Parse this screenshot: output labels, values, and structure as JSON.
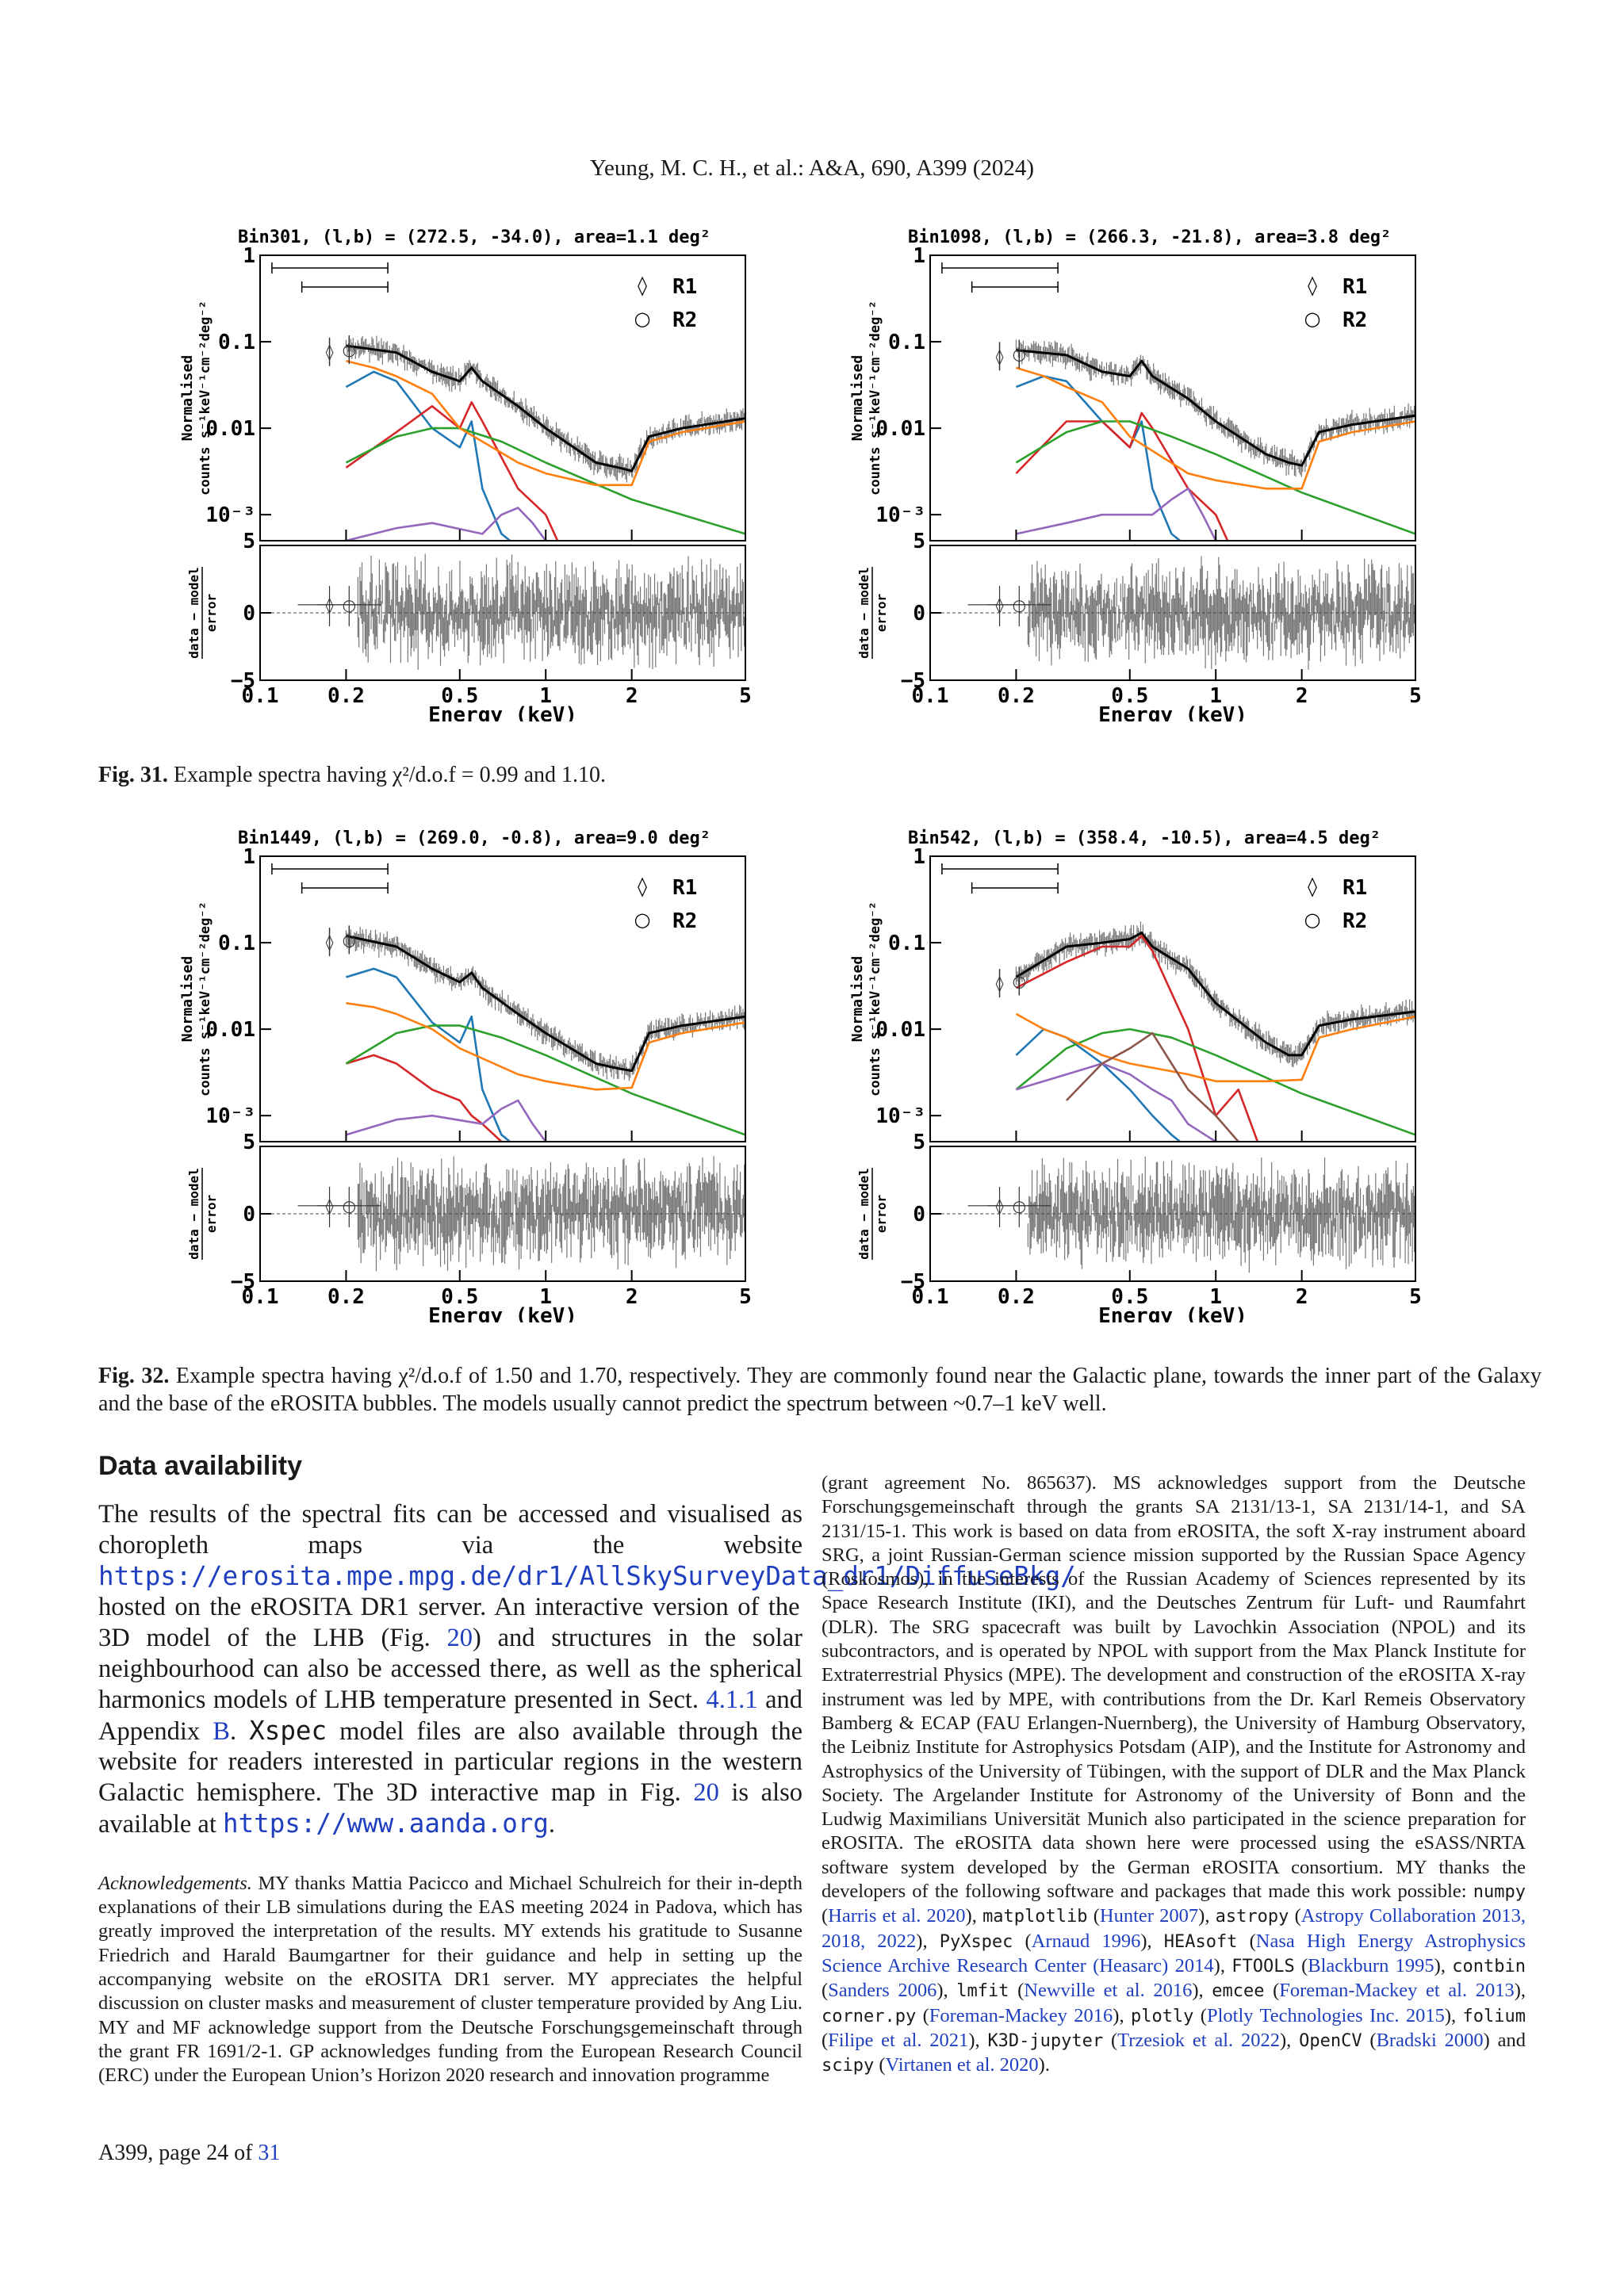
{
  "header": {
    "running_title": "Yeung, M. C. H., et al.: A&A, 690, A399  (2024)"
  },
  "figure31": {
    "caption_label": "Fig. 31.",
    "caption_text": " Example spectra having χ²/d.o.f = 0.99 and 1.10."
  },
  "figure32": {
    "caption_label": "Fig. 32.",
    "caption_text": " Example spectra having χ²/d.o.f of 1.50 and 1.70, respectively. They are commonly found near the Galactic plane, towards the inner part of the Galaxy and the base of the eROSITA bubbles. The models usually cannot predict the spectrum between ~0.7–1 keV well."
  },
  "chart_labels": {
    "ylabel_top_1": "Normalised",
    "ylabel_top_2": "counts s⁻¹keV⁻¹cm⁻²deg⁻²",
    "ylabel_bottom_1": "data − model",
    "ylabel_bottom_2": "error",
    "xlabel": "Energy (keV)",
    "legend_r1": "R1",
    "legend_r2": "R2",
    "r1_marker": "◊",
    "r2_marker": "○",
    "x_tick_labels": [
      "0.1",
      "0.2",
      "0.5",
      "1",
      "2",
      "5"
    ],
    "y_tick_labels_top": [
      "1",
      "0.1",
      "0.01",
      "10⁻³",
      "5"
    ],
    "y_tick_labels_bottom": [
      "5",
      "0",
      "−5"
    ]
  },
  "chart_data": [
    {
      "type": "line",
      "title": "Bin301, (l,b) = (272.5, -34.0), area=1.1 deg²",
      "xlabel": "Energy (keV)",
      "ylabel": "Normalised counts s⁻¹keV⁻¹cm⁻²deg⁻²",
      "x_scale": "log",
      "y_scale": "log",
      "xlim": [
        0.1,
        5
      ],
      "ylim_spectrum": [
        0.0005,
        1
      ],
      "ylim_residual": [
        -5,
        5
      ],
      "series": [
        {
          "color": "#000000",
          "x": [
            0.2,
            0.3,
            0.4,
            0.5,
            0.55,
            0.6,
            0.8,
            1.0,
            1.5,
            1.8,
            2.0,
            2.3,
            3.0,
            5.0
          ],
          "y": [
            0.09,
            0.075,
            0.045,
            0.035,
            0.05,
            0.035,
            0.018,
            0.01,
            0.004,
            0.0035,
            0.0032,
            0.008,
            0.01,
            0.013
          ]
        },
        {
          "color": "#1f77b4",
          "x": [
            0.2,
            0.25,
            0.3,
            0.4,
            0.5,
            0.55,
            0.6,
            0.7,
            0.75
          ],
          "y": [
            0.03,
            0.045,
            0.035,
            0.01,
            0.006,
            0.012,
            0.002,
            0.0006,
            0.0005
          ]
        },
        {
          "color": "#d62728",
          "x": [
            0.2,
            0.3,
            0.4,
            0.5,
            0.55,
            0.6,
            0.8,
            1.0,
            1.1
          ],
          "y": [
            0.0035,
            0.009,
            0.018,
            0.01,
            0.02,
            0.012,
            0.002,
            0.001,
            0.0005
          ]
        },
        {
          "color": "#2ca02c",
          "x": [
            0.2,
            0.3,
            0.4,
            0.5,
            0.7,
            1.0,
            2.0,
            5.0
          ],
          "y": [
            0.004,
            0.008,
            0.01,
            0.01,
            0.007,
            0.004,
            0.0015,
            0.0006
          ]
        },
        {
          "color": "#ff7f0e",
          "x": [
            0.2,
            0.25,
            0.3,
            0.4,
            0.5,
            0.8,
            1.0,
            1.5,
            2.0,
            2.3,
            3.0,
            5.0
          ],
          "y": [
            0.06,
            0.05,
            0.04,
            0.025,
            0.01,
            0.004,
            0.003,
            0.0022,
            0.0022,
            0.007,
            0.009,
            0.012
          ]
        },
        {
          "color": "#9467bd",
          "x": [
            0.2,
            0.3,
            0.4,
            0.6,
            0.7,
            0.8,
            0.9,
            1.0
          ],
          "y": [
            0.0005,
            0.0007,
            0.0008,
            0.0006,
            0.001,
            0.0012,
            0.0008,
            0.0005
          ]
        }
      ]
    },
    {
      "type": "line",
      "title": "Bin1098, (l,b) = (266.3, -21.8), area=3.8 deg²",
      "xlabel": "Energy (keV)",
      "ylabel": "Normalised counts s⁻¹keV⁻¹cm⁻²deg⁻²",
      "x_scale": "log",
      "y_scale": "log",
      "xlim": [
        0.1,
        5
      ],
      "ylim_spectrum": [
        0.0005,
        1
      ],
      "ylim_residual": [
        -5,
        5
      ],
      "series": [
        {
          "color": "#000000",
          "x": [
            0.2,
            0.3,
            0.4,
            0.5,
            0.55,
            0.6,
            0.8,
            1.0,
            1.5,
            1.8,
            2.0,
            2.3,
            3.0,
            5.0
          ],
          "y": [
            0.08,
            0.07,
            0.045,
            0.04,
            0.06,
            0.04,
            0.022,
            0.012,
            0.005,
            0.004,
            0.0037,
            0.009,
            0.011,
            0.014
          ]
        },
        {
          "color": "#1f77b4",
          "x": [
            0.2,
            0.25,
            0.3,
            0.4,
            0.5,
            0.55,
            0.6,
            0.7,
            0.75
          ],
          "y": [
            0.03,
            0.04,
            0.035,
            0.012,
            0.006,
            0.012,
            0.002,
            0.0006,
            0.0005
          ]
        },
        {
          "color": "#d62728",
          "x": [
            0.2,
            0.3,
            0.4,
            0.5,
            0.55,
            0.6,
            0.8,
            1.0,
            1.1
          ],
          "y": [
            0.003,
            0.012,
            0.012,
            0.006,
            0.015,
            0.01,
            0.002,
            0.001,
            0.0005
          ]
        },
        {
          "color": "#2ca02c",
          "x": [
            0.2,
            0.3,
            0.4,
            0.5,
            0.7,
            1.0,
            2.0,
            5.0
          ],
          "y": [
            0.004,
            0.009,
            0.012,
            0.012,
            0.008,
            0.005,
            0.0018,
            0.0006
          ]
        },
        {
          "color": "#ff7f0e",
          "x": [
            0.2,
            0.25,
            0.3,
            0.4,
            0.5,
            0.8,
            1.0,
            1.5,
            2.0,
            2.3,
            3.0,
            5.0
          ],
          "y": [
            0.05,
            0.04,
            0.03,
            0.02,
            0.008,
            0.003,
            0.0025,
            0.002,
            0.002,
            0.007,
            0.009,
            0.012
          ]
        },
        {
          "color": "#9467bd",
          "x": [
            0.2,
            0.3,
            0.4,
            0.6,
            0.7,
            0.8,
            0.9,
            1.0
          ],
          "y": [
            0.0006,
            0.0008,
            0.001,
            0.001,
            0.0015,
            0.002,
            0.001,
            0.0005
          ]
        }
      ]
    },
    {
      "type": "line",
      "title": "Bin1449, (l,b) = (269.0, -0.8), area=9.0 deg²",
      "xlabel": "Energy (keV)",
      "ylabel": "Normalised counts s⁻¹keV⁻¹cm⁻²deg⁻²",
      "x_scale": "log",
      "y_scale": "log",
      "xlim": [
        0.1,
        5
      ],
      "ylim_spectrum": [
        0.0005,
        1
      ],
      "ylim_residual": [
        -5,
        5
      ],
      "series": [
        {
          "color": "#000000",
          "x": [
            0.2,
            0.3,
            0.4,
            0.5,
            0.55,
            0.6,
            0.8,
            1.0,
            1.5,
            1.8,
            2.0,
            2.3,
            3.0,
            5.0
          ],
          "y": [
            0.12,
            0.09,
            0.05,
            0.035,
            0.045,
            0.03,
            0.015,
            0.009,
            0.004,
            0.0035,
            0.0033,
            0.009,
            0.011,
            0.014
          ]
        },
        {
          "color": "#1f77b4",
          "x": [
            0.2,
            0.25,
            0.3,
            0.4,
            0.5,
            0.55,
            0.6,
            0.7,
            0.75
          ],
          "y": [
            0.04,
            0.05,
            0.04,
            0.012,
            0.007,
            0.014,
            0.002,
            0.0006,
            0.0005
          ]
        },
        {
          "color": "#d62728",
          "x": [
            0.2,
            0.25,
            0.3,
            0.4,
            0.5,
            0.55,
            0.6,
            0.7
          ],
          "y": [
            0.004,
            0.005,
            0.004,
            0.002,
            0.0015,
            0.001,
            0.0008,
            0.0005
          ]
        },
        {
          "color": "#2ca02c",
          "x": [
            0.2,
            0.3,
            0.4,
            0.5,
            0.7,
            1.0,
            2.0,
            5.0
          ],
          "y": [
            0.004,
            0.009,
            0.011,
            0.011,
            0.008,
            0.005,
            0.0018,
            0.0006
          ]
        },
        {
          "color": "#ff7f0e",
          "x": [
            0.2,
            0.25,
            0.3,
            0.4,
            0.5,
            0.8,
            1.0,
            1.5,
            2.0,
            2.3,
            3.0,
            5.0
          ],
          "y": [
            0.02,
            0.018,
            0.015,
            0.01,
            0.006,
            0.003,
            0.0025,
            0.002,
            0.0021,
            0.007,
            0.009,
            0.012
          ]
        },
        {
          "color": "#9467bd",
          "x": [
            0.2,
            0.3,
            0.4,
            0.6,
            0.7,
            0.8,
            0.9,
            1.0
          ],
          "y": [
            0.0006,
            0.0009,
            0.001,
            0.0008,
            0.0012,
            0.0015,
            0.0008,
            0.0005
          ]
        }
      ]
    },
    {
      "type": "line",
      "title": "Bin542, (l,b) = (358.4, -10.5), area=4.5 deg²",
      "xlabel": "Energy (keV)",
      "ylabel": "Normalised counts s⁻¹keV⁻¹cm⁻²deg⁻²",
      "x_scale": "log",
      "y_scale": "log",
      "xlim": [
        0.1,
        5
      ],
      "ylim_spectrum": [
        0.0005,
        1
      ],
      "ylim_residual": [
        -5,
        5
      ],
      "series": [
        {
          "color": "#000000",
          "x": [
            0.2,
            0.3,
            0.4,
            0.5,
            0.55,
            0.6,
            0.8,
            1.0,
            1.5,
            1.8,
            2.0,
            2.3,
            3.0,
            5.0
          ],
          "y": [
            0.04,
            0.09,
            0.1,
            0.11,
            0.13,
            0.09,
            0.05,
            0.02,
            0.007,
            0.005,
            0.005,
            0.011,
            0.013,
            0.016
          ]
        },
        {
          "color": "#1f77b4",
          "x": [
            0.2,
            0.25,
            0.3,
            0.4,
            0.5,
            0.6,
            0.7,
            0.75
          ],
          "y": [
            0.005,
            0.01,
            0.008,
            0.004,
            0.002,
            0.001,
            0.0006,
            0.0005
          ]
        },
        {
          "color": "#d62728",
          "x": [
            0.2,
            0.3,
            0.4,
            0.5,
            0.55,
            0.6,
            0.8,
            1.0,
            1.2,
            1.4
          ],
          "y": [
            0.03,
            0.06,
            0.09,
            0.09,
            0.12,
            0.08,
            0.01,
            0.001,
            0.002,
            0.0005
          ]
        },
        {
          "color": "#2ca02c",
          "x": [
            0.2,
            0.3,
            0.4,
            0.5,
            0.7,
            1.0,
            2.0,
            5.0
          ],
          "y": [
            0.002,
            0.006,
            0.009,
            0.01,
            0.008,
            0.005,
            0.0018,
            0.0006
          ]
        },
        {
          "color": "#ff7f0e",
          "x": [
            0.2,
            0.25,
            0.3,
            0.4,
            0.5,
            0.8,
            1.0,
            1.5,
            2.0,
            2.3,
            3.0,
            5.0
          ],
          "y": [
            0.015,
            0.01,
            0.008,
            0.005,
            0.004,
            0.003,
            0.0025,
            0.0025,
            0.0026,
            0.008,
            0.01,
            0.014
          ]
        },
        {
          "color": "#9467bd",
          "x": [
            0.2,
            0.3,
            0.4,
            0.5,
            0.6,
            0.7,
            0.8,
            1.0
          ],
          "y": [
            0.002,
            0.003,
            0.004,
            0.003,
            0.002,
            0.0015,
            0.0008,
            0.0005
          ]
        },
        {
          "color": "#8c564b",
          "x": [
            0.3,
            0.4,
            0.5,
            0.6,
            0.7,
            0.8,
            1.0,
            1.2
          ],
          "y": [
            0.0015,
            0.004,
            0.006,
            0.009,
            0.004,
            0.002,
            0.001,
            0.0005
          ]
        }
      ]
    }
  ],
  "data_availability": {
    "title": "Data availability",
    "p1_a": "The results of the spectral fits can be accessed and visualised as choropleth maps via the website ",
    "p1_url": "https://erosita.mpe.mpg.de/dr1/AllSkySurveyData_dr1/DiffuseBkg/",
    "p1_b": " hosted on the eROSITA DR1 server. An interactive version of the 3D model of the LHB (Fig. ",
    "p1_fig20": "20",
    "p1_c": ") and structures in the solar neighbourhood can also be accessed there, as well as the spherical harmonics models of LHB temperature presented in Sect. ",
    "p1_sect": "4.1.1",
    "p1_d": " and Appendix ",
    "p1_app": "B",
    "p1_e": ". ",
    "p1_xspec": "Xspec",
    "p1_f": " model files are also available through the website for readers interested in particular regions in the western Galactic hemisphere. The 3D interactive map in Fig. ",
    "p1_fig20b": "20",
    "p1_g": " is also available at ",
    "p1_url2": "https://www.aanda.org",
    "p1_h": "."
  },
  "acknowledgements": {
    "label": "Acknowledgements.",
    "text": " MY thanks Mattia Pacicco and Michael Schulreich for their in-depth explanations of their LB simulations during the EAS meeting 2024 in Padova, which has greatly improved the interpretation of the results. MY extends his gratitude to Susanne Friedrich and Harald Baumgartner for their guidance and help in setting up the accompanying website on the eROSITA DR1 server. MY appreciates the helpful discussion on cluster masks and measurement of cluster temperature provided by Ang Liu. MY and MF acknowledge support from the Deutsche Forschungsgemeinschaft through the grant FR 1691/2-1. GP acknowledges funding from the European Research Council (ERC) under the European Union’s Horizon 2020 research and innovation programme"
  },
  "right_column": {
    "text_1": "(grant agreement No. 865637). MS acknowledges support from the Deutsche Forschungsgemeinschaft through the grants SA 2131/13-1, SA 2131/14-1, and SA 2131/15-1. This work is based on data from eROSITA, the soft X-ray instrument aboard SRG, a joint Russian-German science mission supported by the Russian Space Agency (Roskosmos), in the interests of the Russian Academy of Sciences represented by its Space Research Institute (IKI), and the Deutsches Zentrum für Luft- und Raumfahrt (DLR). The SRG spacecraft was built by Lavochkin Association (NPOL) and its subcontractors, and is operated by NPOL with support from the Max Planck Institute for Extraterrestrial Physics (MPE). The development and construction of the eROSITA X-ray instrument was led by MPE, with contributions from the Dr. Karl Remeis Observatory Bamberg & ECAP (FAU Erlangen-Nuernberg), the University of Hamburg Observatory, the Leibniz Institute for Astrophysics Potsdam (AIP), and the Institute for Astronomy and Astrophysics of the University of Tübingen, with the support of DLR and the Max Planck Society. The Argelander Institute for Astronomy of the University of Bonn and the Ludwig Maximilians Universität Munich also participated in the science preparation for eROSITA. The eROSITA data shown here were processed using the eSASS/NRTA software system developed by the German eROSITA consortium. MY thanks the developers of the following software and packages that made this work possible: ",
    "sw": [
      {
        "name": "numpy",
        "cite": "Harris et al. 2020"
      },
      {
        "name": "matplotlib",
        "cite": "Hunter 2007"
      },
      {
        "name": "astropy",
        "cite": "Astropy Collaboration 2013, 2018, 2022"
      },
      {
        "name": "PyXspec",
        "cite": "Arnaud 1996"
      },
      {
        "name": "HEAsoft",
        "cite": "Nasa High Energy Astrophysics Science Archive Research Center (Heasarc) 2014"
      },
      {
        "name": "FTOOLS",
        "cite": "Blackburn 1995"
      },
      {
        "name": "contbin",
        "cite": "Sanders 2006"
      },
      {
        "name": "lmfit",
        "cite": "Newville et al. 2016"
      },
      {
        "name": "emcee",
        "cite": "Foreman-Mackey et al. 2013"
      },
      {
        "name": "corner.py",
        "cite": "Foreman-Mackey 2016"
      },
      {
        "name": "plotly",
        "cite": "Plotly Technologies Inc. 2015"
      },
      {
        "name": "folium",
        "cite": "Filipe et al. 2021"
      },
      {
        "name": "K3D-jupyter",
        "cite": "Trzesiok et al. 2022"
      },
      {
        "name": "OpenCV",
        "cite": "Bradski 2000"
      },
      {
        "name": "scipy",
        "cite": "Virtanen et al. 2020"
      }
    ]
  },
  "footer": {
    "page_prefix": "A399, page 24 of ",
    "page_total": "31"
  }
}
